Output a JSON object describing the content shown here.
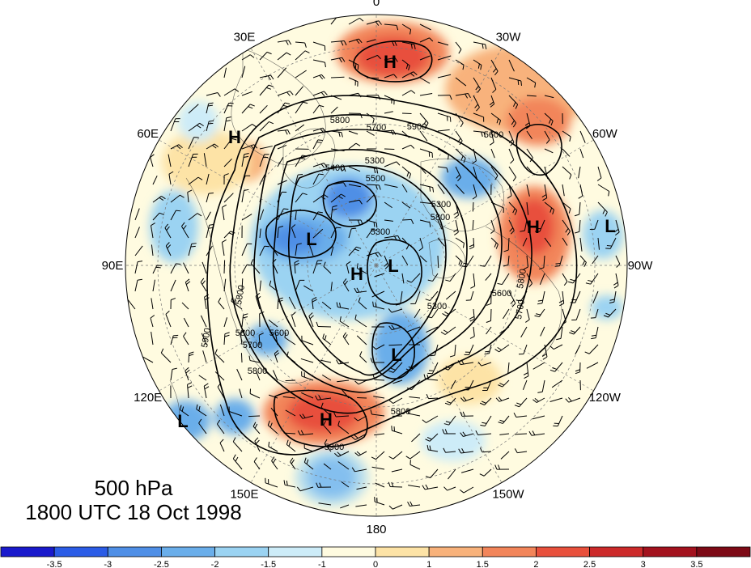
{
  "map": {
    "longitude_labels": [
      {
        "text": "0",
        "lon": 0
      },
      {
        "text": "30W",
        "lon": -30
      },
      {
        "text": "60W",
        "lon": -60
      },
      {
        "text": "90W",
        "lon": -90
      },
      {
        "text": "120W",
        "lon": -120
      },
      {
        "text": "150W",
        "lon": -150
      },
      {
        "text": "180",
        "lon": 180
      },
      {
        "text": "150E",
        "lon": 150
      },
      {
        "text": "120E",
        "lon": 120
      },
      {
        "text": "90E",
        "lon": 90
      },
      {
        "text": "60E",
        "lon": 60
      },
      {
        "text": "30E",
        "lon": 30
      }
    ],
    "pressure_centers": [
      "H",
      "H",
      "H",
      "H",
      "H",
      "L",
      "L",
      "L",
      "L",
      "L"
    ],
    "contour_labels": [
      "5800",
      "5700",
      "5900",
      "5600",
      "5400",
      "5300",
      "5500",
      "5300",
      "5800",
      "5800",
      "5700",
      "5600",
      "5800",
      "5300",
      "5300",
      "5800",
      "5900",
      "5700",
      "5600",
      "5800",
      "5800",
      "5900"
    ],
    "colors": {
      "neg_3_5": "#1a1acc",
      "neg_3": "#2b5ce6",
      "neg_2_5": "#4f8fe6",
      "neg_2": "#6aaeea",
      "neg_1_5": "#9bd3f2",
      "neg_1": "#cdecf8",
      "pos_0": "#fffbe0",
      "pos_1": "#fde3a6",
      "pos_1_5": "#f8b27b",
      "pos_2": "#f2855a",
      "pos_2_5": "#e8503c",
      "pos_3": "#cc2a2a",
      "pos_3_5": "#a3121e"
    }
  },
  "caption": {
    "level": "500 hPa",
    "time": "1800 UTC 18 Oct 1998"
  },
  "colorbar": {
    "tick_labels": [
      "-3.5",
      "-3",
      "-2.5",
      "-2",
      "-1.5",
      "-1",
      "0",
      "1",
      "1.5",
      "2",
      "2.5",
      "3",
      "3.5"
    ],
    "bin_colors": [
      "#1a1acc",
      "#2b5ce6",
      "#4f8fe6",
      "#6aaeea",
      "#9bd3f2",
      "#cdecf8",
      "#fffbe0",
      "#fde3a6",
      "#f8b27b",
      "#f2855a",
      "#e8503c",
      "#cc2a2a",
      "#a3121e",
      "#7d0a16"
    ]
  }
}
